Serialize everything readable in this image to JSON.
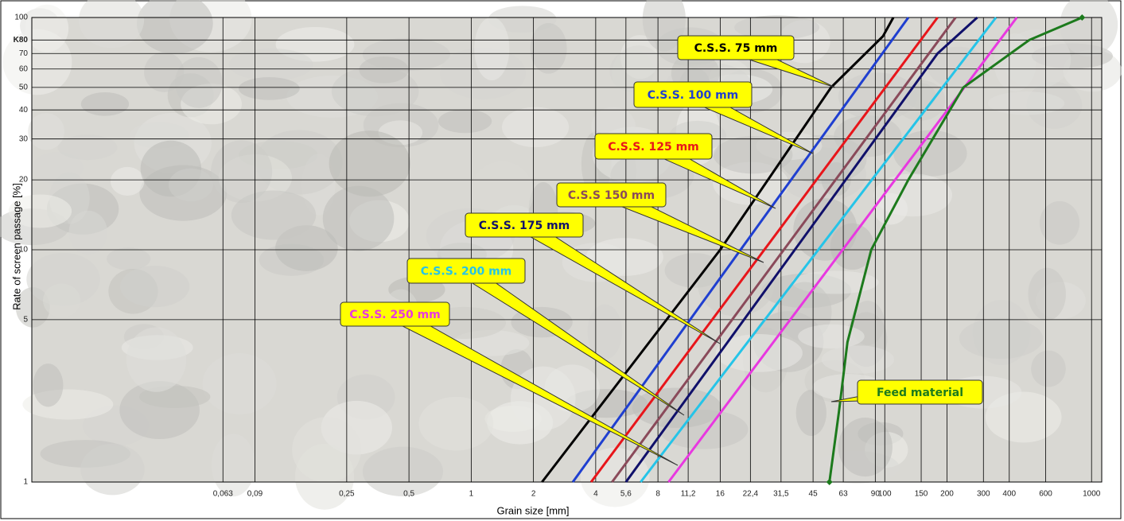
{
  "chart_data": {
    "type": "line",
    "x_label": "Grain size [mm]",
    "y_label": "Rate of screen passage [%]",
    "xscale": "log",
    "yscale": "log",
    "grid": true,
    "xlim": [
      0.0075,
      1120
    ],
    "ylim": [
      1,
      100
    ],
    "xticks": [
      {
        "value": 0.063,
        "label": "0,063"
      },
      {
        "value": 0.09,
        "label": "0,09"
      },
      {
        "value": 0.25,
        "label": "0,25"
      },
      {
        "value": 0.5,
        "label": "0,5"
      },
      1,
      2,
      4,
      {
        "value": 5.6,
        "label": "5,6"
      },
      8,
      {
        "value": 11.2,
        "label": "11,2"
      },
      16,
      {
        "value": 22.4,
        "label": "22,4"
      },
      {
        "value": 31.5,
        "label": "31,5"
      },
      45,
      63,
      90,
      100,
      150,
      200,
      300,
      400,
      600,
      1000
    ],
    "yticks": [
      1,
      5,
      10,
      20,
      30,
      40,
      50,
      60,
      70,
      {
        "value": 80,
        "label": "K80"
      },
      100
    ],
    "series": [
      {
        "name": "C.S.S. 75 mm",
        "color": "#000000",
        "x": [
          2.2,
          16,
          55,
          98,
          110
        ],
        "values": [
          1,
          10,
          50,
          83,
          100
        ]
      },
      {
        "name": "C.S.S. 100 mm",
        "color": "#1f3fd0",
        "x": [
          3.1,
          130
        ],
        "values": [
          1,
          100
        ]
      },
      {
        "name": "C.S.S. 125 mm",
        "color": "#e8151a",
        "x": [
          3.8,
          180
        ],
        "values": [
          1,
          100
        ]
      },
      {
        "name": "C.S.S 150 mm",
        "color": "#8a4a5a",
        "x": [
          4.8,
          220
        ],
        "values": [
          1,
          100
        ]
      },
      {
        "name": "C.S.S. 175 mm",
        "color": "#10106a",
        "x": [
          5.6,
          180,
          280
        ],
        "values": [
          1,
          70,
          100
        ]
      },
      {
        "name": "C.S.S. 200 mm",
        "color": "#25c4e8",
        "x": [
          6.6,
          345
        ],
        "values": [
          1,
          100
        ]
      },
      {
        "name": "C.S.S. 250 mm",
        "color": "#e838e0",
        "x": [
          9,
          435
        ],
        "values": [
          1,
          100
        ]
      },
      {
        "name": "Feed material",
        "color": "#1c7a1c",
        "x": [
          54,
          60,
          66,
          86,
          130,
          240,
          500,
          900
        ],
        "values": [
          1,
          2,
          4,
          10,
          20,
          50,
          80,
          100
        ],
        "endpoint_markers": true
      }
    ]
  }
}
